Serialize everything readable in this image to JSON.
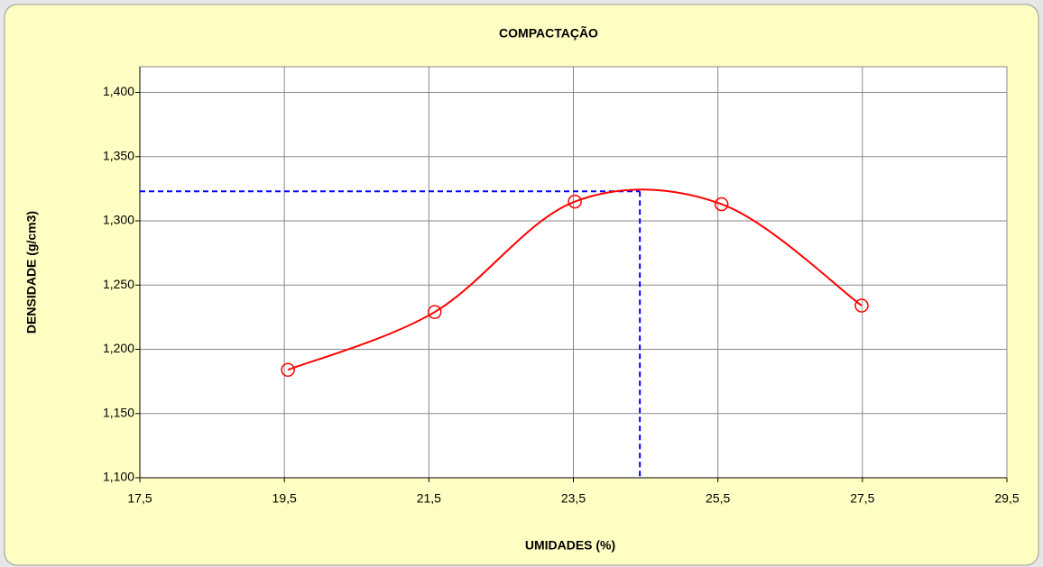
{
  "chart_data": {
    "type": "line",
    "title": "COMPACTAÇÃO",
    "x_label": "UMIDADES (%)",
    "y_label": "DENSIDADE (g/cm3)",
    "series": [
      {
        "color": "#ff0000",
        "x": [
          19.55,
          21.58,
          23.52,
          25.55,
          27.49
        ],
        "values": [
          1.184,
          1.229,
          1.315,
          1.313,
          1.234
        ]
      }
    ],
    "max_point": {
      "x": 24.42,
      "y": 1.323,
      "color": "#0000ff"
    },
    "xlim": [
      17.5,
      29.5
    ],
    "xticks": [
      {
        "value": 17.5,
        "label": "17,5"
      },
      {
        "value": 19.5,
        "label": "19,5"
      },
      {
        "value": 21.5,
        "label": "21,5"
      },
      {
        "value": 23.5,
        "label": "23,5"
      },
      {
        "value": 25.5,
        "label": "25,5"
      },
      {
        "value": 27.5,
        "label": "27,5"
      },
      {
        "value": 29.5,
        "label": "29,5"
      }
    ],
    "ylim": [
      1.1,
      1.42
    ],
    "yticks": [
      {
        "value": 1.1,
        "label": "1,100"
      },
      {
        "value": 1.15,
        "label": "1,150"
      },
      {
        "value": 1.2,
        "label": "1,200"
      },
      {
        "value": 1.25,
        "label": "1,250"
      },
      {
        "value": 1.3,
        "label": "1,300"
      },
      {
        "value": 1.35,
        "label": "1,350"
      },
      {
        "value": 1.4,
        "label": "1,400"
      }
    ],
    "grid": true
  }
}
